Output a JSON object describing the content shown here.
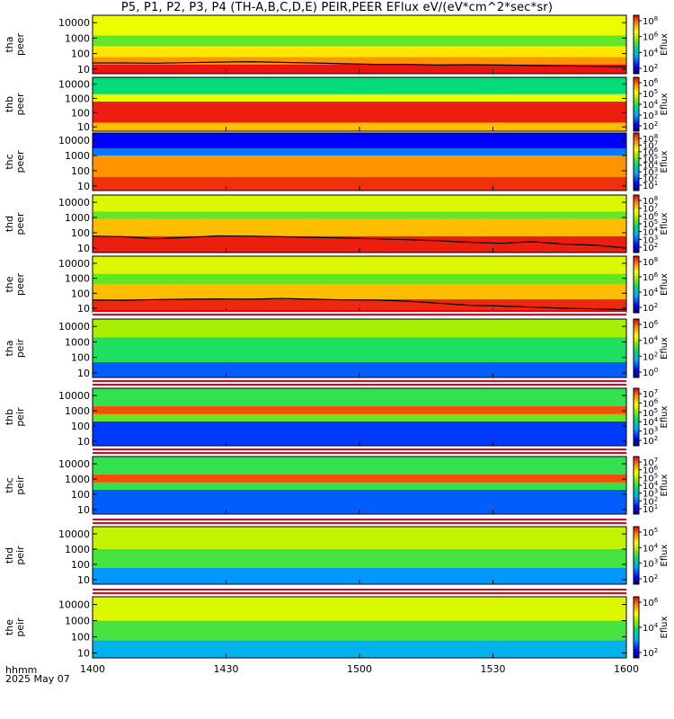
{
  "title": "P5, P1, P2, P3, P4 (TH-A,B,C,D,E) PEIR,PEER EFlux eV/(eV*cm^2*sec*sr)",
  "colorbar_label": "Eflux",
  "time_label": "hhmm",
  "date_label": "2025 May 07",
  "colors": {
    "background": "#ffffff",
    "sep_red": "#e6001a",
    "sep_white": "#ffffff",
    "trace": "#000000"
  },
  "chart_data": {
    "type": "heatmap",
    "x_ticks": [
      "1400",
      "1430",
      "1500",
      "1530",
      "1600"
    ],
    "y_ticks": [
      "10",
      "100",
      "1000",
      "10000"
    ],
    "ylim": [
      5,
      30000
    ],
    "y_scale": "log",
    "panels": [
      {
        "probe": "tha",
        "species": "peer",
        "cb_ticks": [
          "10^2",
          "10^4",
          "10^6",
          "10^8"
        ],
        "has_trace": true
      },
      {
        "probe": "thb",
        "species": "peer",
        "cb_ticks": [
          "10^2",
          "10^3",
          "10^4",
          "10^5",
          "10^6"
        ],
        "has_trace": false
      },
      {
        "probe": "thc",
        "species": "peer",
        "cb_ticks": [
          "10^1",
          "10^2",
          "10^3",
          "10^4",
          "10^5",
          "10^6",
          "10^7",
          "10^8"
        ],
        "has_trace": false
      },
      {
        "probe": "thd",
        "species": "peer",
        "cb_ticks": [
          "10^2",
          "10^3",
          "10^4",
          "10^5",
          "10^6",
          "10^7",
          "10^8"
        ],
        "has_trace": true
      },
      {
        "probe": "the",
        "species": "peer",
        "cb_ticks": [
          "10^2",
          "10^4",
          "10^6",
          "10^8"
        ],
        "has_trace": true
      },
      {
        "probe": "tha",
        "species": "peir",
        "cb_ticks": [
          "10^0",
          "10^2",
          "10^4",
          "10^6"
        ],
        "has_trace": false
      },
      {
        "probe": "thb",
        "species": "peir",
        "cb_ticks": [
          "10^2",
          "10^3",
          "10^4",
          "10^5",
          "10^6",
          "10^7"
        ],
        "has_trace": false
      },
      {
        "probe": "thc",
        "species": "peir",
        "cb_ticks": [
          "10^1",
          "10^2",
          "10^3",
          "10^4",
          "10^5",
          "10^6",
          "10^7"
        ],
        "has_trace": false
      },
      {
        "probe": "thd",
        "species": "peir",
        "cb_ticks": [
          "10^2",
          "10^3",
          "10^4",
          "10^5"
        ],
        "has_trace": false
      },
      {
        "probe": "the",
        "species": "peir",
        "cb_ticks": [
          "10^2",
          "10^4",
          "10^6"
        ],
        "has_trace": false
      }
    ]
  }
}
